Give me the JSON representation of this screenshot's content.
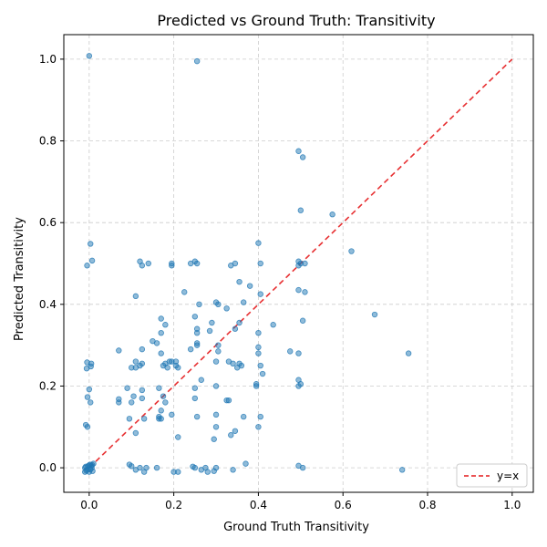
{
  "chart_data": {
    "type": "scatter",
    "title": "Predicted vs Ground Truth: Transitivity",
    "xlabel": "Ground Truth Transitivity",
    "ylabel": "Predicted Transitivity",
    "xlim": [
      -0.06,
      1.05
    ],
    "ylim": [
      -0.06,
      1.06
    ],
    "xticks": [
      "0.0",
      "0.2",
      "0.4",
      "0.6",
      "0.8",
      "1.0"
    ],
    "yticks": [
      "0.0",
      "0.2",
      "0.4",
      "0.6",
      "0.8",
      "1.0"
    ],
    "grid": true,
    "legend": {
      "position": "lower-right",
      "entries": [
        "y=x"
      ]
    },
    "colors": {
      "points": "#1f77b4",
      "reference_line": "#e41a1c"
    },
    "reference_line": {
      "label": "y=x",
      "from": [
        0,
        0
      ],
      "to": [
        1,
        1
      ]
    },
    "points": [
      [
        -0.01,
        0.0
      ],
      [
        0.0,
        -0.01
      ],
      [
        0.005,
        0.005
      ],
      [
        -0.008,
        0.003
      ],
      [
        0.008,
        -0.008
      ],
      [
        0.002,
        0.008
      ],
      [
        -0.005,
        -0.005
      ],
      [
        0.006,
        0.0
      ],
      [
        0.0,
        0.006
      ],
      [
        -0.01,
        -0.01
      ],
      [
        0.01,
        0.01
      ],
      [
        0.003,
        -0.004
      ],
      [
        -0.003,
        0.004
      ],
      [
        0.007,
        0.007
      ],
      [
        -0.007,
        -0.007
      ],
      [
        0.0,
        1.008
      ],
      [
        -0.005,
        0.495
      ],
      [
        0.003,
        0.548
      ],
      [
        0.007,
        0.507
      ],
      [
        -0.005,
        0.258
      ],
      [
        0.005,
        0.255
      ],
      [
        0.004,
        0.248
      ],
      [
        -0.006,
        0.243
      ],
      [
        0.0,
        0.192
      ],
      [
        -0.004,
        0.173
      ],
      [
        0.003,
        0.16
      ],
      [
        -0.008,
        0.105
      ],
      [
        -0.004,
        0.1
      ],
      [
        0.07,
        0.287
      ],
      [
        0.07,
        0.168
      ],
      [
        0.07,
        0.16
      ],
      [
        0.09,
        0.195
      ],
      [
        0.095,
        0.12
      ],
      [
        0.095,
        0.008
      ],
      [
        0.1,
        0.004
      ],
      [
        0.1,
        0.245
      ],
      [
        0.1,
        0.16
      ],
      [
        0.105,
        0.175
      ],
      [
        0.11,
        0.42
      ],
      [
        0.11,
        0.26
      ],
      [
        0.11,
        0.245
      ],
      [
        0.11,
        0.085
      ],
      [
        0.11,
        -0.005
      ],
      [
        0.12,
        0.505
      ],
      [
        0.12,
        0.25
      ],
      [
        0.12,
        0.0
      ],
      [
        0.125,
        0.495
      ],
      [
        0.125,
        0.29
      ],
      [
        0.125,
        0.255
      ],
      [
        0.125,
        0.19
      ],
      [
        0.125,
        0.17
      ],
      [
        0.13,
        -0.01
      ],
      [
        0.13,
        0.12
      ],
      [
        0.135,
        0.0
      ],
      [
        0.14,
        0.5
      ],
      [
        0.15,
        0.31
      ],
      [
        0.16,
        0.0
      ],
      [
        0.16,
        0.305
      ],
      [
        0.165,
        0.12
      ],
      [
        0.165,
        0.195
      ],
      [
        0.165,
        0.125
      ],
      [
        0.17,
        0.365
      ],
      [
        0.17,
        0.33
      ],
      [
        0.17,
        0.28
      ],
      [
        0.17,
        0.14
      ],
      [
        0.17,
        0.12
      ],
      [
        0.175,
        0.175
      ],
      [
        0.175,
        0.25
      ],
      [
        0.18,
        0.35
      ],
      [
        0.18,
        0.255
      ],
      [
        0.18,
        0.16
      ],
      [
        0.185,
        0.245
      ],
      [
        0.19,
        0.26
      ],
      [
        0.195,
        0.5
      ],
      [
        0.195,
        0.495
      ],
      [
        0.195,
        0.13
      ],
      [
        0.195,
        0.26
      ],
      [
        0.2,
        -0.01
      ],
      [
        0.205,
        0.26
      ],
      [
        0.205,
        0.25
      ],
      [
        0.21,
        0.075
      ],
      [
        0.21,
        0.245
      ],
      [
        0.21,
        -0.01
      ],
      [
        0.225,
        0.43
      ],
      [
        0.24,
        0.5
      ],
      [
        0.24,
        0.29
      ],
      [
        0.245,
        0.003
      ],
      [
        0.25,
        0.505
      ],
      [
        0.25,
        0.37
      ],
      [
        0.25,
        0.195
      ],
      [
        0.25,
        0.17
      ],
      [
        0.25,
        0.0
      ],
      [
        0.255,
        0.995
      ],
      [
        0.255,
        0.5
      ],
      [
        0.255,
        0.34
      ],
      [
        0.255,
        0.33
      ],
      [
        0.255,
        0.305
      ],
      [
        0.255,
        0.3
      ],
      [
        0.255,
        0.125
      ],
      [
        0.26,
        0.4
      ],
      [
        0.265,
        0.215
      ],
      [
        0.265,
        -0.005
      ],
      [
        0.275,
        0.0
      ],
      [
        0.28,
        -0.01
      ],
      [
        0.285,
        0.335
      ],
      [
        0.29,
        0.355
      ],
      [
        0.295,
        0.07
      ],
      [
        0.295,
        -0.008
      ],
      [
        0.3,
        0.405
      ],
      [
        0.3,
        0.26
      ],
      [
        0.3,
        0.2
      ],
      [
        0.3,
        0.13
      ],
      [
        0.3,
        0.1
      ],
      [
        0.3,
        0.0
      ],
      [
        0.305,
        0.4
      ],
      [
        0.305,
        0.3
      ],
      [
        0.305,
        0.285
      ],
      [
        0.325,
        0.39
      ],
      [
        0.325,
        0.165
      ],
      [
        0.33,
        0.26
      ],
      [
        0.33,
        0.165
      ],
      [
        0.335,
        0.495
      ],
      [
        0.335,
        0.08
      ],
      [
        0.34,
        0.255
      ],
      [
        0.34,
        -0.005
      ],
      [
        0.345,
        0.5
      ],
      [
        0.345,
        0.34
      ],
      [
        0.345,
        0.09
      ],
      [
        0.35,
        0.245
      ],
      [
        0.355,
        0.455
      ],
      [
        0.355,
        0.355
      ],
      [
        0.355,
        0.255
      ],
      [
        0.36,
        0.25
      ],
      [
        0.365,
        0.405
      ],
      [
        0.365,
        0.125
      ],
      [
        0.37,
        0.01
      ],
      [
        0.38,
        0.445
      ],
      [
        0.395,
        0.205
      ],
      [
        0.395,
        0.2
      ],
      [
        0.4,
        0.55
      ],
      [
        0.4,
        0.33
      ],
      [
        0.4,
        0.295
      ],
      [
        0.4,
        0.28
      ],
      [
        0.4,
        0.1
      ],
      [
        0.405,
        0.5
      ],
      [
        0.405,
        0.425
      ],
      [
        0.405,
        0.25
      ],
      [
        0.405,
        0.125
      ],
      [
        0.41,
        0.23
      ],
      [
        0.435,
        0.35
      ],
      [
        0.475,
        0.285
      ],
      [
        0.495,
        0.775
      ],
      [
        0.495,
        0.505
      ],
      [
        0.495,
        0.495
      ],
      [
        0.495,
        0.435
      ],
      [
        0.495,
        0.28
      ],
      [
        0.495,
        0.215
      ],
      [
        0.495,
        0.2
      ],
      [
        0.495,
        0.005
      ],
      [
        0.5,
        0.63
      ],
      [
        0.5,
        0.5
      ],
      [
        0.5,
        0.205
      ],
      [
        0.505,
        0.76
      ],
      [
        0.505,
        0.36
      ],
      [
        0.505,
        0.0
      ],
      [
        0.51,
        0.5
      ],
      [
        0.51,
        0.43
      ],
      [
        0.575,
        0.62
      ],
      [
        0.62,
        0.53
      ],
      [
        0.675,
        0.375
      ],
      [
        0.74,
        -0.005
      ],
      [
        0.755,
        0.28
      ]
    ]
  }
}
